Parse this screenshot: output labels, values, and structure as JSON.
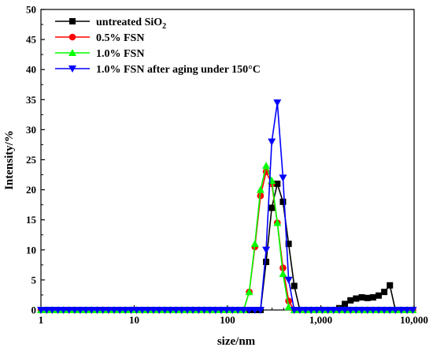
{
  "chart_data": {
    "type": "line",
    "xlabel": "size/nm",
    "ylabel": "Intensity/%",
    "xscale": "log",
    "xlim": [
      1,
      10000
    ],
    "ylim": [
      0,
      50
    ],
    "x_ticks": [
      1,
      10,
      100,
      1000,
      10000
    ],
    "x_tick_labels": [
      "1",
      "10",
      "100",
      "1,000",
      "10,000"
    ],
    "y_ticks": [
      0,
      5,
      10,
      15,
      20,
      25,
      30,
      35,
      40,
      45,
      50
    ],
    "grid": false,
    "legend_position": "top-left",
    "series": [
      {
        "name": "untreated SiO",
        "name_subscript": "2",
        "color": "#000000",
        "marker": "square",
        "x": [
          1,
          1.15,
          1.32,
          1.52,
          1.74,
          2,
          2.3,
          2.64,
          3.04,
          3.49,
          4.01,
          4.61,
          5.3,
          6.09,
          7,
          8.05,
          9.25,
          10.63,
          12.2,
          14,
          16.1,
          18.5,
          21.3,
          24.4,
          28.1,
          32.3,
          37.1,
          42.6,
          49,
          56.3,
          64.7,
          74.3,
          85.4,
          98.1,
          112.7,
          129.5,
          148.8,
          171,
          196.5,
          225.8,
          259.4,
          298,
          342,
          393,
          452,
          519,
          596,
          685,
          787,
          904,
          1039,
          1193,
          1371,
          1576,
          1811,
          2080,
          2390,
          2750,
          3160,
          3630,
          4170,
          4790,
          5500,
          6300,
          7300,
          8400,
          9700
        ],
        "y": [
          0,
          0,
          0,
          0,
          0,
          0,
          0,
          0,
          0,
          0,
          0,
          0,
          0,
          0,
          0,
          0,
          0,
          0,
          0,
          0,
          0,
          0,
          0,
          0,
          0,
          0,
          0,
          0,
          0,
          0,
          0,
          0,
          0,
          0,
          0,
          0,
          0,
          0,
          0,
          0,
          8,
          17,
          21,
          18,
          11,
          4,
          0,
          0,
          0,
          0,
          0,
          0,
          0,
          0.3,
          1,
          1.6,
          1.9,
          2.1,
          2,
          2.1,
          2.4,
          3,
          4.1,
          0,
          0,
          0,
          0
        ]
      },
      {
        "name": "0.5% FSN",
        "color": "#ff0000",
        "marker": "circle",
        "x": [
          1,
          1.15,
          1.32,
          1.52,
          1.74,
          2,
          2.3,
          2.64,
          3.04,
          3.49,
          4.01,
          4.61,
          5.3,
          6.09,
          7,
          8.05,
          9.25,
          10.63,
          12.2,
          14,
          16.1,
          18.5,
          21.3,
          24.4,
          28.1,
          32.3,
          37.1,
          42.6,
          49,
          56.3,
          64.7,
          74.3,
          85.4,
          98.1,
          112.7,
          129.5,
          148.8,
          171,
          196.5,
          225.8,
          259.4,
          298,
          342,
          393,
          452,
          519,
          596,
          685,
          787,
          904,
          1039,
          1193,
          1371,
          1576,
          1811,
          2080,
          2390,
          2750,
          3160,
          3630,
          4170,
          4790,
          5500,
          6300,
          7300,
          8400,
          9700
        ],
        "y": [
          0,
          0,
          0,
          0,
          0,
          0,
          0,
          0,
          0,
          0,
          0,
          0,
          0,
          0,
          0,
          0,
          0,
          0,
          0,
          0,
          0,
          0,
          0,
          0,
          0,
          0,
          0,
          0,
          0,
          0,
          0,
          0,
          0,
          0,
          0,
          0,
          0,
          3,
          10.5,
          19,
          23,
          21,
          14.5,
          7,
          1.5,
          0,
          0,
          0,
          0,
          0,
          0,
          0,
          0,
          0,
          0,
          0,
          0,
          0,
          0,
          0,
          0,
          0,
          0,
          0,
          0,
          0,
          0
        ]
      },
      {
        "name": "1.0% FSN",
        "color": "#00ff00",
        "marker": "triangle-up",
        "x": [
          1,
          1.15,
          1.32,
          1.52,
          1.74,
          2,
          2.3,
          2.64,
          3.04,
          3.49,
          4.01,
          4.61,
          5.3,
          6.09,
          7,
          8.05,
          9.25,
          10.63,
          12.2,
          14,
          16.1,
          18.5,
          21.3,
          24.4,
          28.1,
          32.3,
          37.1,
          42.6,
          49,
          56.3,
          64.7,
          74.3,
          85.4,
          98.1,
          112.7,
          129.5,
          148.8,
          171,
          196.5,
          225.8,
          259.4,
          298,
          342,
          393,
          452,
          519,
          596,
          685,
          787,
          904,
          1039,
          1193,
          1371,
          1576,
          1811,
          2080,
          2390,
          2750,
          3160,
          3630,
          4170,
          4790,
          5500,
          6300,
          7300,
          8400,
          9700
        ],
        "y": [
          0,
          0,
          0,
          0,
          0,
          0,
          0,
          0,
          0,
          0,
          0,
          0,
          0,
          0,
          0,
          0,
          0,
          0,
          0,
          0,
          0,
          0,
          0,
          0,
          0,
          0,
          0,
          0,
          0,
          0,
          0,
          0,
          0,
          0,
          0,
          0,
          0,
          3,
          11,
          20,
          24,
          21.5,
          14.5,
          6,
          0.5,
          0,
          0,
          0,
          0,
          0,
          0,
          0,
          0,
          0,
          0,
          0,
          0,
          0,
          0,
          0,
          0,
          0,
          0,
          0,
          0,
          0,
          0
        ]
      },
      {
        "name": "1.0% FSN after aging under 150°C",
        "color": "#0000ff",
        "marker": "triangle-down",
        "x": [
          1,
          1.15,
          1.32,
          1.52,
          1.74,
          2,
          2.3,
          2.64,
          3.04,
          3.49,
          4.01,
          4.61,
          5.3,
          6.09,
          7,
          8.05,
          9.25,
          10.63,
          12.2,
          14,
          16.1,
          18.5,
          21.3,
          24.4,
          28.1,
          32.3,
          37.1,
          42.6,
          49,
          56.3,
          64.7,
          74.3,
          85.4,
          98.1,
          112.7,
          129.5,
          148.8,
          171,
          196.5,
          225.8,
          259.4,
          298,
          342,
          393,
          452,
          519,
          596,
          685,
          787,
          904,
          1039,
          1193,
          1371,
          1576,
          1811,
          2080,
          2390,
          2750,
          3160,
          3630,
          4170,
          4790,
          5500,
          6300,
          7300,
          8400,
          9700
        ],
        "y": [
          0,
          0,
          0,
          0,
          0,
          0,
          0,
          0,
          0,
          0,
          0,
          0,
          0,
          0,
          0,
          0,
          0,
          0,
          0,
          0,
          0,
          0,
          0,
          0,
          0,
          0,
          0,
          0,
          0,
          0,
          0,
          0,
          0,
          0,
          0,
          0,
          0,
          0,
          0,
          0,
          10,
          28,
          34.5,
          22,
          5,
          0,
          0,
          0,
          0,
          0,
          0,
          0,
          0,
          0,
          0,
          0,
          0,
          0,
          0,
          0,
          0,
          0,
          0,
          0,
          0,
          0,
          0
        ]
      }
    ]
  }
}
